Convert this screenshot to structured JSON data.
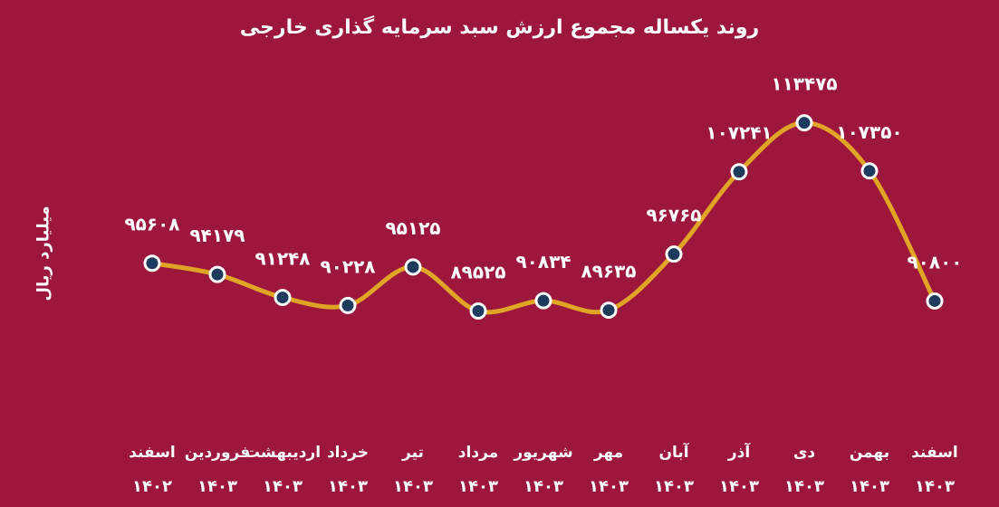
{
  "chart_data": {
    "type": "line",
    "title": "روند یکساله مجموع ارزش سبد سرمایه گذاری خارجی",
    "ylabel": "میلیارد ریال",
    "xlabel": "",
    "categories": [
      {
        "month": "اسفند",
        "year": "۱۴۰۲"
      },
      {
        "month": "فروردین",
        "year": "۱۴۰۳"
      },
      {
        "month": "اردیبهشت",
        "year": "۱۴۰۳"
      },
      {
        "month": "خرداد",
        "year": "۱۴۰۳"
      },
      {
        "month": "تیر",
        "year": "۱۴۰۳"
      },
      {
        "month": "مرداد",
        "year": "۱۴۰۳"
      },
      {
        "month": "شهریور",
        "year": "۱۴۰۳"
      },
      {
        "month": "مهر",
        "year": "۱۴۰۳"
      },
      {
        "month": "آبان",
        "year": "۱۴۰۳"
      },
      {
        "month": "آذر",
        "year": "۱۴۰۳"
      },
      {
        "month": "دی",
        "year": "۱۴۰۳"
      },
      {
        "month": "بهمن",
        "year": "۱۴۰۳"
      },
      {
        "month": "اسفند",
        "year": "۱۴۰۳"
      }
    ],
    "values": [
      95608,
      94179,
      91248,
      90228,
      95125,
      89525,
      90834,
      89635,
      96765,
      107241,
      113475,
      107350,
      90800
    ],
    "value_labels": [
      "۹۵۶۰۸",
      "۹۴۱۷۹",
      "۹۱۲۴۸",
      "۹۰۲۲۸",
      "۹۵۱۲۵",
      "۸۹۵۲۵",
      "۹۰۸۳۴",
      "۸۹۶۳۵",
      "۹۶۷۶۵",
      "۱۰۷۲۴۱",
      "۱۱۳۴۷۵",
      "۱۰۷۳۵۰",
      "۹۰۸۰۰"
    ],
    "ylim": [
      70000,
      120000
    ],
    "grid": false,
    "colors": {
      "background": "#9d173c",
      "line": "#e0a526",
      "marker_fill": "#1e3a5c",
      "marker_stroke": "#ffffff",
      "text": "#ffffff"
    }
  }
}
